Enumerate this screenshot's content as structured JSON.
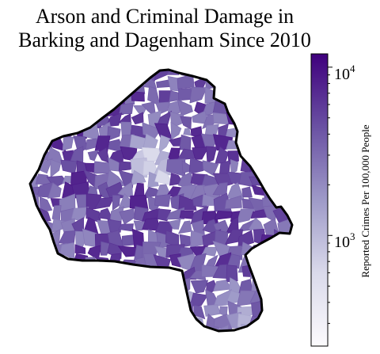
{
  "title": {
    "line1": "Arson and Criminal Damage in",
    "line2": "Barking and Dagenham Since 2010"
  },
  "colorbar": {
    "label": "Reported Crimes Per 100,000 People",
    "scale": "log",
    "range": [
      220,
      12000
    ],
    "ticks": [
      {
        "value": 1000,
        "base": "10",
        "exp": "3"
      },
      {
        "value": 10000,
        "base": "10",
        "exp": "4"
      }
    ],
    "colormap": "Purples",
    "colors": [
      "#fcfbfd",
      "#dadaeb",
      "#9e9ac8",
      "#6a51a3",
      "#3f007d"
    ]
  },
  "map": {
    "region": "Barking and Dagenham",
    "boundary_color": "#000000"
  }
}
